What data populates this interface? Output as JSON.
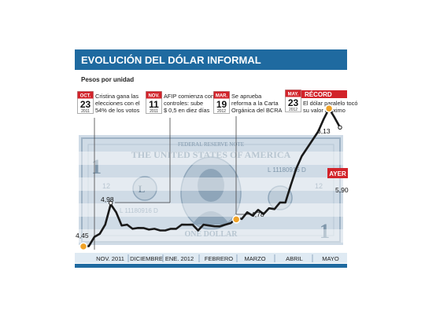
{
  "title": "EVOLUCIÓN DEL DÓLAR INFORMAL",
  "subtitle": "Pesos por unidad",
  "chart_data": {
    "type": "line",
    "ylabel": "Pesos por unidad",
    "x_labels": [
      "NOV. 2011",
      "DICIEMBRE",
      "ENE. 2012",
      "FEBRERO",
      "MARZO",
      "ABRIL",
      "MAYO"
    ],
    "ylim": [
      4.2,
      6.4
    ],
    "series": [
      {
        "values": [
          4.45,
          4.47,
          4.55,
          4.62,
          4.7,
          4.98,
          4.85,
          4.72,
          4.7,
          4.68,
          4.66,
          4.69,
          4.64,
          4.68,
          4.63,
          4.66,
          4.65,
          4.68,
          4.7,
          4.73,
          4.7,
          4.66,
          4.7,
          4.72,
          4.68,
          4.71,
          4.7,
          4.75,
          4.78,
          4.8,
          4.85,
          4.84,
          4.88,
          4.86,
          4.9,
          4.92,
          4.97,
          5.0,
          5.2,
          5.4,
          5.55,
          5.65,
          5.75,
          5.85,
          6.0,
          6.13,
          6.02,
          5.9
        ]
      }
    ],
    "labeled_points": [
      {
        "label": "4,45"
      },
      {
        "label": "4,98"
      },
      {
        "label": "4,78"
      },
      {
        "label": "6,13"
      },
      {
        "label": "5,90"
      }
    ]
  },
  "events": [
    {
      "month": "OCT.",
      "day": "23",
      "year": "2011",
      "lines": [
        "Cristina gana las",
        "elecciones con el",
        "54% de los votos"
      ]
    },
    {
      "month": "NOV.",
      "day": "11",
      "year": "2011",
      "lines": [
        "AFIP comienza con",
        "controles: sube",
        "$ 0,5 en diez días"
      ]
    },
    {
      "month": "MAR.",
      "day": "19",
      "year": "2012",
      "lines": [
        "Se aprueba",
        "reforma a la Carta",
        "Orgánica del BCRA"
      ]
    },
    {
      "month": "MAY.",
      "day": "23",
      "year": "2012",
      "tag": "RÉCORD",
      "lines": [
        "El dólar paralelo tocó",
        "su valor máximo"
      ]
    }
  ],
  "ayer_label": "AYER",
  "colors": {
    "header": "#1f6aa0",
    "band": "#dfeaf3",
    "accent_red": "#d2232a",
    "line": "#1a1a1a",
    "marker": "#f0a226"
  }
}
